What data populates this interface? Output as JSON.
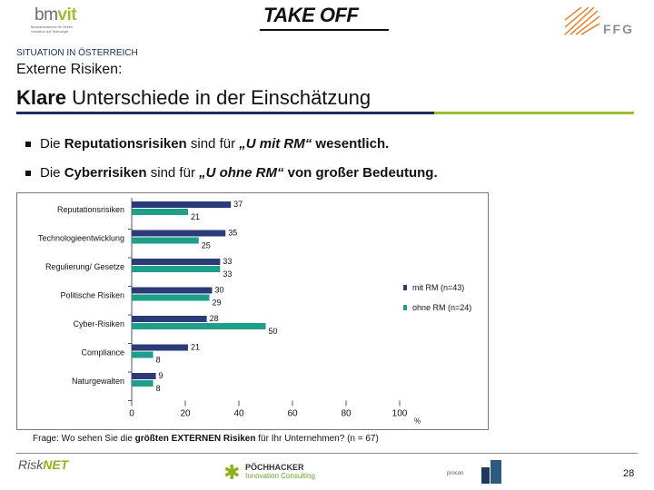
{
  "header": {
    "logo_left": {
      "part1": "bm",
      "part2": "v",
      "part3": "it"
    },
    "logo_left_sub": "Bundesministerium für Verkehr, Innovation und Technologie",
    "logo_center": "TAKE OFF",
    "logo_right": "FFG"
  },
  "section_label": "SITUATION IN ÖSTERREICH",
  "subtitle": "Externe Risiken:",
  "title": {
    "bold": "Klare",
    "rest": " Unterschiede in der Einschätzung"
  },
  "bullets": [
    {
      "pre": "Die ",
      "bold": "Reputationsrisiken",
      "mid": " sind für ",
      "quote": "„U mit RM“",
      "post": " wesentlich."
    },
    {
      "pre": "Die ",
      "bold": "Cyberrisiken",
      "mid": " sind für ",
      "quote": "„U ohne RM“",
      "post": " von großer Bedeutung."
    }
  ],
  "chart_data": {
    "type": "bar",
    "orientation": "horizontal",
    "categories": [
      "Reputationsrisiken",
      "Technologieentwicklung",
      "Regulierung/ Gesetze",
      "Politische Risiken",
      "Cyber-Risiken",
      "Compliance",
      "Naturgewalten"
    ],
    "series": [
      {
        "name": "mit RM (n=43)",
        "color": "#2b3b78",
        "values": [
          37,
          35,
          33,
          30,
          28,
          21,
          9
        ]
      },
      {
        "name": "ohne RM (n=24)",
        "color": "#1f9e8a",
        "values": [
          21,
          25,
          33,
          29,
          50,
          8,
          8
        ]
      }
    ],
    "x_ticks": [
      0,
      20,
      40,
      60,
      80,
      100
    ],
    "xlim": [
      0,
      100
    ],
    "unit": "%",
    "legend": "right"
  },
  "footnote": {
    "pre": "Frage: Wo sehen Sie die ",
    "bold": "größten EXTERNEN Risiken",
    "post": " für Ihr Unternehmen? (n = 67)"
  },
  "footer": {
    "logo1": {
      "a": "Risk",
      "b": "NET"
    },
    "logo2": {
      "name": "PÖCHHACKER",
      "sub": "Innovation Consulting"
    },
    "logo3": "procon",
    "page": "28"
  }
}
